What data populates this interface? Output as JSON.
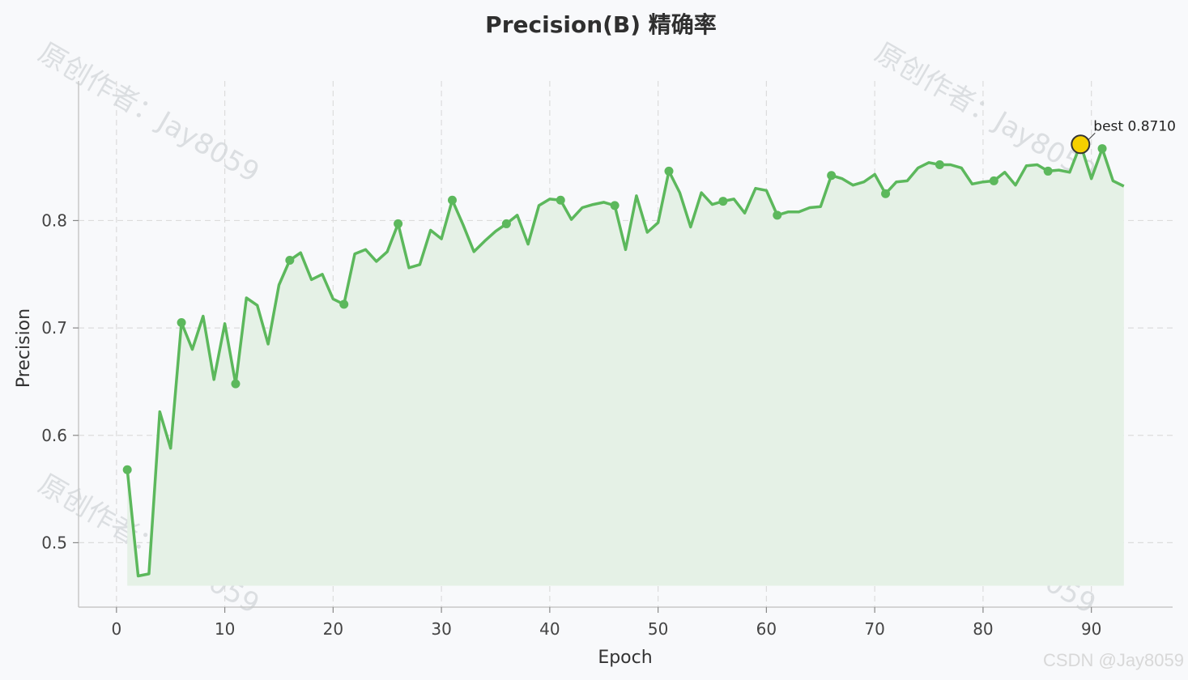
{
  "chart_data": {
    "type": "line",
    "title": "Precision(B) 精确率",
    "xlabel": "Epoch",
    "ylabel": "Precision",
    "xlim": [
      -3.5,
      97.5
    ],
    "ylim": [
      0.44,
      0.93
    ],
    "xticks": [
      0,
      10,
      20,
      30,
      40,
      50,
      60,
      70,
      80,
      90
    ],
    "yticks": [
      0.5,
      0.6,
      0.7,
      0.8
    ],
    "grid": true,
    "fill_baseline": 0.46,
    "line_color": "#5cb85c",
    "fill_color": "#e5f1e6",
    "best_color": "#f5d000",
    "marker_every": 5,
    "series": [
      {
        "x": [
          1,
          2,
          3,
          4,
          5,
          6,
          7,
          8,
          9,
          10,
          11,
          12,
          13,
          14,
          15,
          16,
          17,
          18,
          19,
          20,
          21,
          22,
          23,
          24,
          25,
          26,
          27,
          28,
          29,
          30,
          31,
          32,
          33,
          34,
          35,
          36,
          37,
          38,
          39,
          40,
          41,
          42,
          43,
          44,
          45,
          46,
          47,
          48,
          49,
          50,
          51,
          52,
          53,
          54,
          55,
          56,
          57,
          58,
          59,
          60,
          61,
          62,
          63,
          64,
          65,
          66,
          67,
          68,
          69,
          70,
          71,
          72,
          73,
          74,
          75,
          76,
          77,
          78,
          79,
          80,
          81,
          82,
          83,
          84,
          85,
          86,
          87,
          88,
          89,
          90,
          91,
          92,
          93
        ],
        "values": [
          0.568,
          0.469,
          0.471,
          0.622,
          0.588,
          0.705,
          0.68,
          0.711,
          0.652,
          0.704,
          0.648,
          0.728,
          0.721,
          0.685,
          0.74,
          0.763,
          0.77,
          0.745,
          0.75,
          0.727,
          0.722,
          0.769,
          0.773,
          0.762,
          0.771,
          0.797,
          0.756,
          0.759,
          0.791,
          0.783,
          0.819,
          0.796,
          0.771,
          0.781,
          0.79,
          0.797,
          0.805,
          0.778,
          0.814,
          0.82,
          0.819,
          0.801,
          0.812,
          0.815,
          0.817,
          0.814,
          0.773,
          0.823,
          0.789,
          0.798,
          0.846,
          0.826,
          0.794,
          0.826,
          0.815,
          0.818,
          0.82,
          0.807,
          0.83,
          0.828,
          0.805,
          0.808,
          0.808,
          0.812,
          0.813,
          0.842,
          0.839,
          0.833,
          0.836,
          0.843,
          0.825,
          0.836,
          0.837,
          0.849,
          0.854,
          0.852,
          0.852,
          0.849,
          0.834,
          0.836,
          0.837,
          0.845,
          0.833,
          0.851,
          0.852,
          0.846,
          0.847,
          0.845,
          0.871,
          0.839,
          0.867,
          0.837,
          0.832
        ]
      }
    ],
    "best": {
      "epoch": 89,
      "value": 0.871,
      "label": "best 0.8710"
    }
  },
  "watermark": {
    "text": "原创作者：Jay8059"
  },
  "credit": "CSDN @Jay8059"
}
